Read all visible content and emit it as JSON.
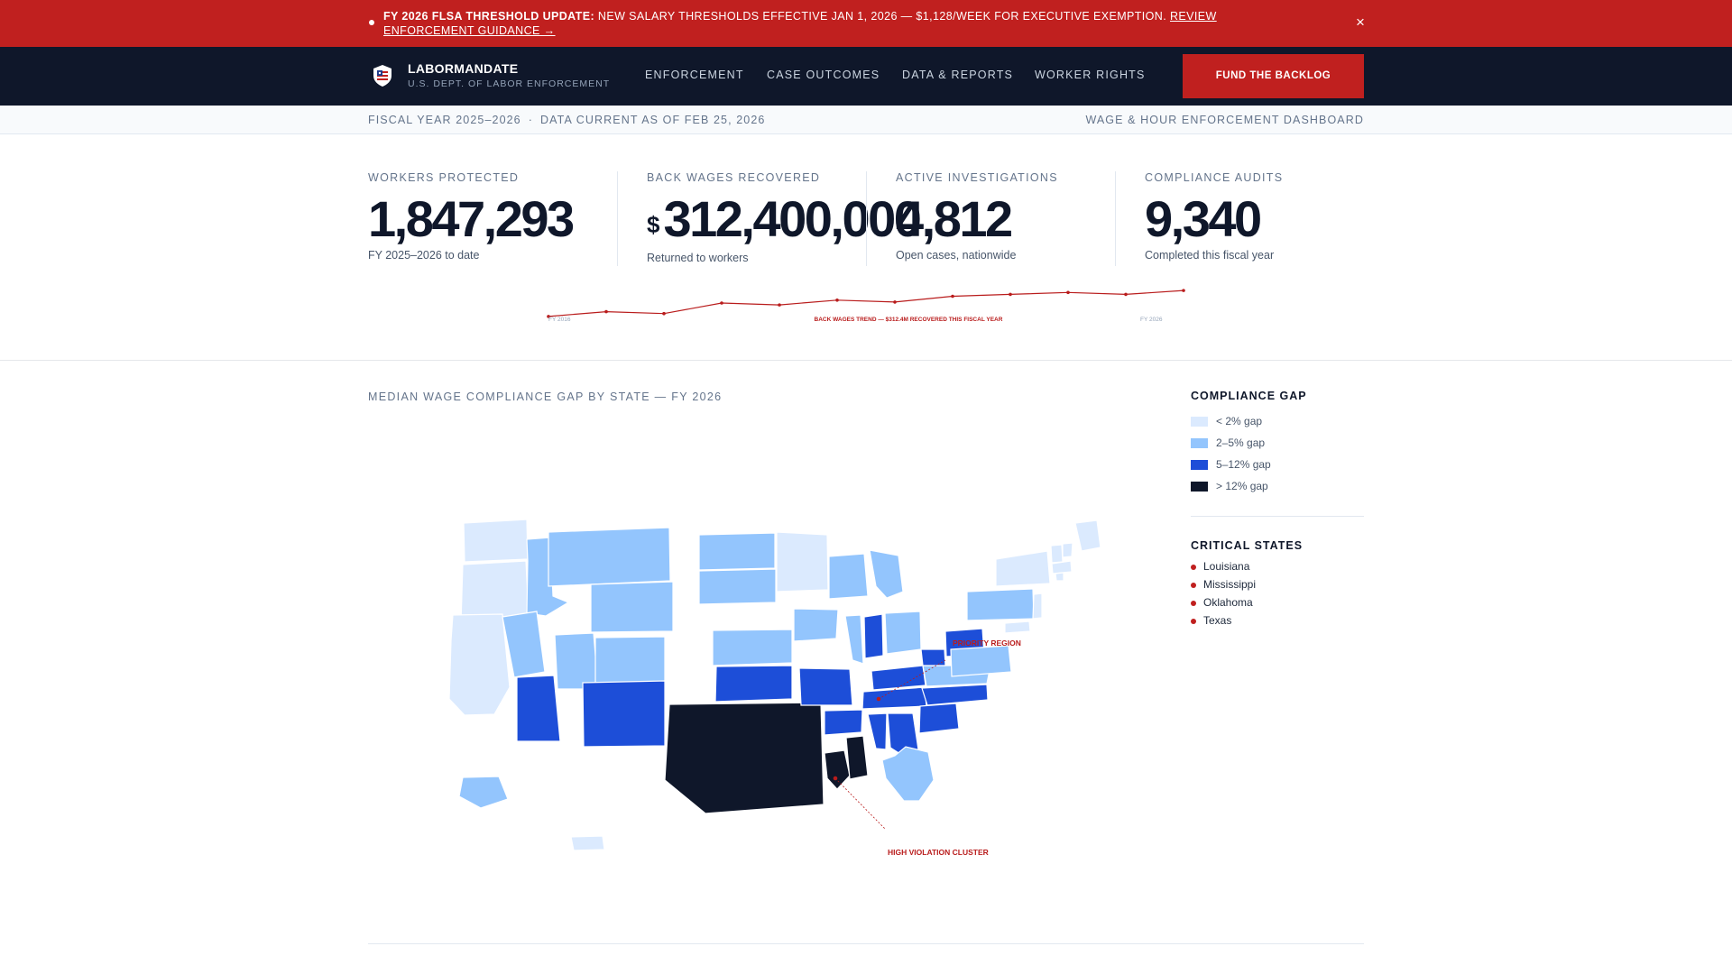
{
  "alert": {
    "title": "FY 2026 FLSA Threshold Update:",
    "message": "New salary thresholds effective Jan 1, 2026 — $1,128/week for executive exemption.",
    "link": "Review enforcement guidance →",
    "close_icon": "×"
  },
  "nav": {
    "brand": "LABORMANDATE",
    "brand_sub": "U.S. DEPT. OF LABOR ENFORCEMENT",
    "logo_icon": "shield-flag-icon",
    "links": [
      "ENFORCEMENT",
      "CASE OUTCOMES",
      "DATA & REPORTS",
      "WORKER RIGHTS"
    ],
    "cta": "FUND THE BACKLOG"
  },
  "meta": {
    "fiscal_year": "FISCAL YEAR 2025–2026",
    "data_current": "DATA CURRENT AS OF FEB 25, 2026",
    "dashboard": "WAGE & HOUR ENFORCEMENT DASHBOARD"
  },
  "stats": [
    {
      "label": "Workers Protected",
      "value": "1,847,293",
      "note": "FY 2025–2026 to date"
    },
    {
      "label": "Back Wages Recovered",
      "currency": "$",
      "value": "312,400,000",
      "note": "Returned to workers"
    },
    {
      "label": "Active Investigations",
      "value": "4,812",
      "note": "Open cases, nationwide"
    },
    {
      "label": "Compliance Audits",
      "value": "9,340",
      "note": "Completed this fiscal year"
    }
  ],
  "trend": {
    "start_label": "FY 2016",
    "caption": "BACK WAGES TREND — $312.4M RECOVERED THIS FISCAL YEAR",
    "end_label": "FY 2026",
    "values": [
      1,
      6,
      4,
      15,
      13,
      18,
      16,
      22,
      24,
      26,
      24,
      28
    ],
    "line_color": "#b91c1c"
  },
  "map": {
    "title": "MEDIAN WAGE COMPLIANCE GAP BY STATE — FY 2026",
    "annotations": [
      "PRIORITY REGION",
      "HIGH VIOLATION CLUSTER"
    ],
    "colors": {
      "low": "#dbeafe",
      "mid": "#93c5fd",
      "high": "#1d4ed8",
      "severe": "#0f172a"
    }
  },
  "legend": {
    "title": "COMPLIANCE GAP",
    "items": [
      {
        "label": "< 2% gap",
        "color": "#dbeafe"
      },
      {
        "label": "2–5% gap",
        "color": "#93c5fd"
      },
      {
        "label": "5–12% gap",
        "color": "#1d4ed8"
      },
      {
        "label": "> 12% gap",
        "color": "#0f172a"
      }
    ]
  },
  "critical": {
    "title": "CRITICAL STATES",
    "states": [
      "Louisiana",
      "Mississippi",
      "Oklahoma",
      "Texas"
    ]
  }
}
